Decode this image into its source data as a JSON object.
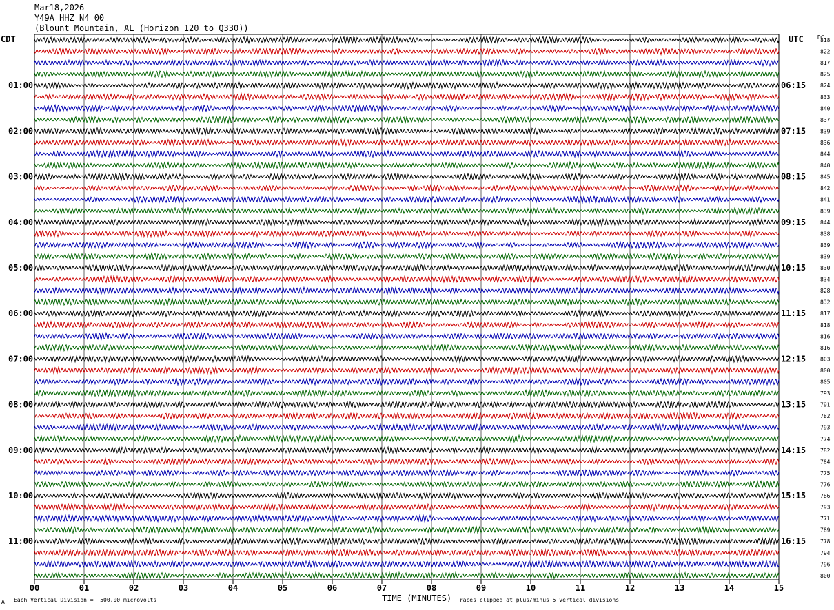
{
  "header": {
    "date": "Mar18,2026",
    "station": "Y49A HHZ N4 00",
    "location": "(Blount Mountain, AL (Horizon 120 to Q330))"
  },
  "left_tz": "CDT",
  "right_tz": "UTC",
  "dc_label": "DC",
  "footer": {
    "scale_note": "Each Vertical Division =  500.00 microvolts",
    "xlabel": "TIME (MINUTES)",
    "clip_note": "Traces clipped at plus/minus 5 vertical divisions",
    "corner_mark": "A"
  },
  "colors": {
    "trace_cycle": [
      "#000000",
      "#cc0000",
      "#0000b0",
      "#006400"
    ],
    "grid": "#000000"
  },
  "chart_data": {
    "type": "line",
    "title": "",
    "xlabel": "TIME (MINUTES)",
    "xlim": [
      0,
      15
    ],
    "x_ticks": [
      "00",
      "01",
      "02",
      "03",
      "04",
      "05",
      "06",
      "07",
      "08",
      "09",
      "10",
      "11",
      "12",
      "13",
      "14",
      "15"
    ],
    "rows": 48,
    "left_hour_labels": [
      "01:00",
      "02:00",
      "03:00",
      "04:00",
      "05:00",
      "06:00",
      "07:00",
      "08:00",
      "09:00",
      "10:00",
      "11:00"
    ],
    "right_hour_labels": [
      "06:15",
      "07:15",
      "08:15",
      "09:15",
      "10:15",
      "11:15",
      "12:15",
      "13:15",
      "14:15",
      "15:15",
      "16:15"
    ],
    "dc_offsets": [
      "818",
      "822",
      "817",
      "825",
      "824",
      "833",
      "840",
      "837",
      "839",
      "836",
      "844",
      "840",
      "845",
      "842",
      "841",
      "839",
      "844",
      "838",
      "839",
      "839",
      "830",
      "834",
      "828",
      "832",
      "817",
      "818",
      "816",
      "816",
      "803",
      "800",
      "805",
      "793",
      "791",
      "782",
      "793",
      "774",
      "782",
      "784",
      "775",
      "776",
      "786",
      "793",
      "771",
      "789",
      "778",
      "794",
      "796",
      "800"
    ]
  }
}
